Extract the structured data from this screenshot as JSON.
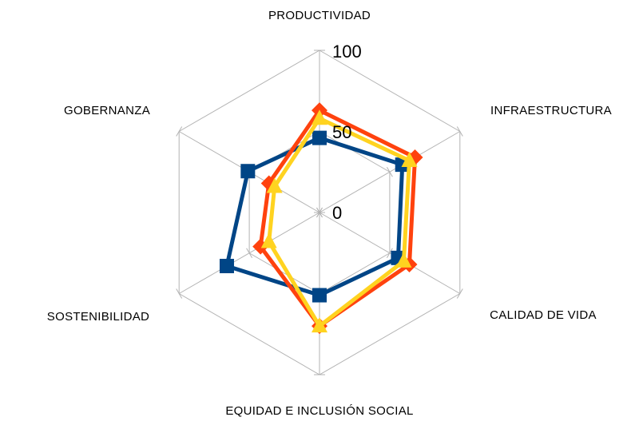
{
  "chart_data": {
    "type": "radar",
    "axes": [
      "PRODUCTIVIDAD",
      "INFRAESTRUCTURA",
      "CALIDAD DE VIDA",
      "EQUIDAD E INCLUSIÓN SOCIAL",
      "SOSTENIBILIDAD",
      "GOBERNANZA"
    ],
    "rlim": [
      0,
      100
    ],
    "ticks": [
      "0",
      "50",
      "100"
    ],
    "grid": true,
    "legend": "none",
    "series": [
      {
        "values": [
          46,
          59,
          56,
          51,
          66,
          51
        ],
        "color": "#004586",
        "marker": "square"
      },
      {
        "values": [
          63,
          68,
          64,
          70,
          42,
          36
        ],
        "color": "#ff420e",
        "marker": "diamond"
      },
      {
        "values": [
          58,
          64,
          60,
          70,
          36,
          32
        ],
        "color": "#ffd320",
        "marker": "triangle"
      }
    ]
  }
}
